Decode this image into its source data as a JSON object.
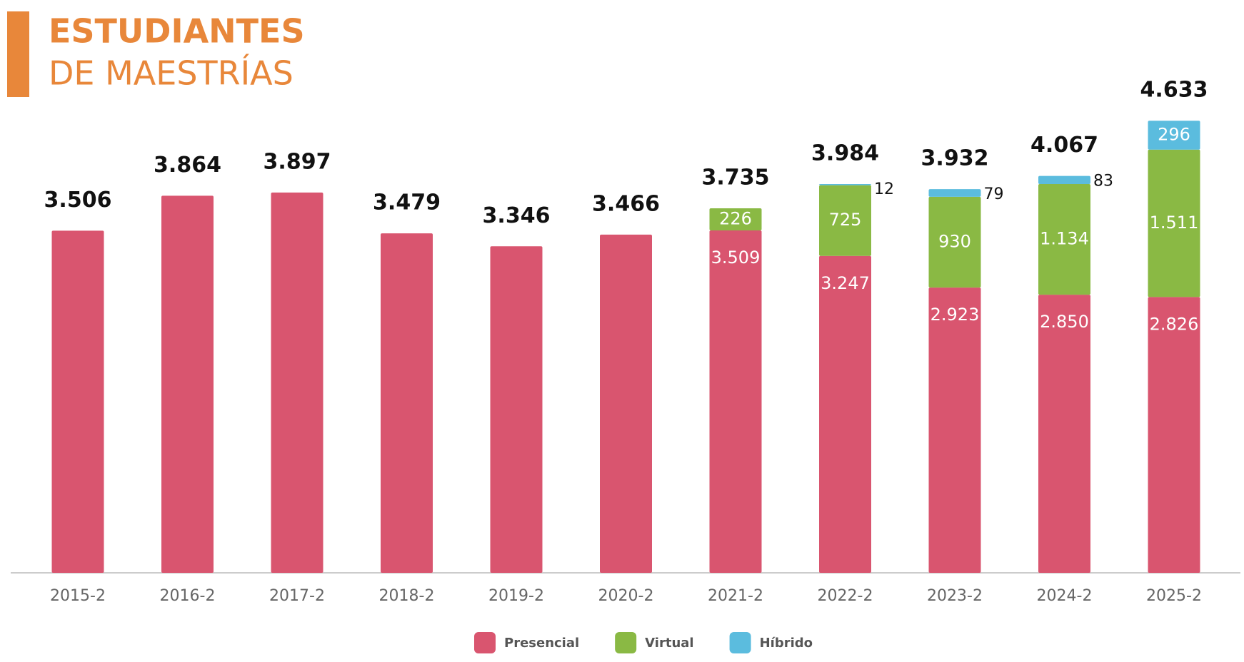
{
  "chart_data": {
    "type": "stacked_bar",
    "title": "ESTUDIANTES",
    "subtitle": "DE MAESTRÍAS",
    "categories": [
      "2015-2",
      "2016-2",
      "2017-2",
      "2018-2",
      "2019-2",
      "2020-2",
      "2021-2",
      "2022-2",
      "2023-2",
      "2024-2",
      "2025-2"
    ],
    "series": [
      {
        "name": "Presencial",
        "color": "#d9556f",
        "values": [
          3506,
          3864,
          3897,
          3479,
          3346,
          3466,
          3509,
          3247,
          2923,
          2850,
          2826
        ],
        "value_labels": [
          null,
          null,
          null,
          null,
          null,
          null,
          "3.509",
          "3.247",
          "2.923",
          "2.850",
          "2.826"
        ]
      },
      {
        "name": "Virtual",
        "color": "#8ab944",
        "values": [
          null,
          null,
          null,
          null,
          null,
          null,
          226,
          725,
          930,
          1134,
          1511
        ],
        "value_labels": [
          null,
          null,
          null,
          null,
          null,
          null,
          "226",
          "725",
          "930",
          "1.134",
          "1.511"
        ]
      },
      {
        "name": "Híbrido",
        "color": "#5bbcde",
        "values": [
          null,
          null,
          null,
          null,
          null,
          null,
          null,
          12,
          79,
          83,
          296
        ],
        "value_labels": [
          null,
          null,
          null,
          null,
          null,
          null,
          null,
          "12",
          "79",
          "83",
          "296"
        ]
      }
    ],
    "totals": {
      "values": [
        3506,
        3864,
        3897,
        3479,
        3346,
        3466,
        3735,
        3984,
        3932,
        4067,
        4633
      ],
      "value_labels": [
        "3.506",
        "3.864",
        "3.897",
        "3.479",
        "3.346",
        "3.466",
        "3.735",
        "3.984",
        "3.932",
        "4.067",
        "4.633"
      ]
    },
    "ylim": [
      0,
      5000
    ],
    "legend": "bottom"
  }
}
